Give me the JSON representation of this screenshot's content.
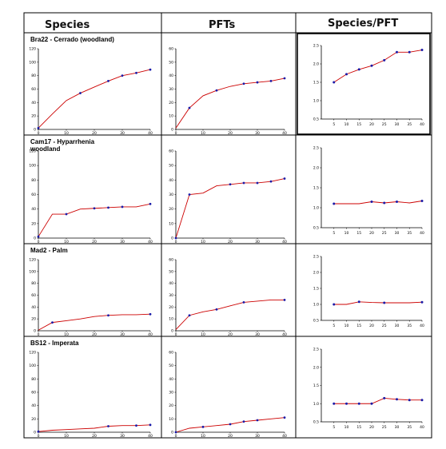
{
  "headers": [
    "Species",
    "PFTs",
    "Species/PFT"
  ],
  "rows": [
    {
      "title_lines": [
        "Bra22 - Cerrado (woodland)"
      ]
    },
    {
      "title_lines": [
        "Cam17 - Hyparrhenia",
        "woodland"
      ]
    },
    {
      "title_lines": [
        "Mad2 - Palm"
      ]
    },
    {
      "title_lines": [
        "BS12 - Imperata"
      ]
    }
  ],
  "colors": {
    "line": "#cc0000",
    "marker": "#1a1aa8",
    "axis": "#000000"
  },
  "chart_data": [
    {
      "type": "line",
      "panel": "Bra22 species",
      "x": [
        0,
        5,
        10,
        15,
        20,
        25,
        30,
        35,
        40
      ],
      "series": [
        {
          "values": [
            2,
            23,
            43,
            54,
            63,
            72,
            80,
            84,
            89
          ]
        }
      ],
      "xlim": [
        0,
        40
      ],
      "ylim": [
        0,
        120
      ],
      "yticks": [
        0,
        20,
        40,
        60,
        80,
        100,
        120
      ],
      "xticks": [
        0,
        10,
        20,
        30,
        40
      ],
      "markers": [
        0,
        15,
        25,
        30,
        35,
        40
      ]
    },
    {
      "type": "line",
      "panel": "Bra22 PFTs",
      "x": [
        0,
        5,
        10,
        15,
        20,
        25,
        30,
        35,
        40
      ],
      "series": [
        {
          "values": [
            1,
            16,
            25,
            29,
            32,
            34,
            35,
            36,
            38
          ]
        }
      ],
      "xlim": [
        0,
        40
      ],
      "ylim": [
        0,
        60
      ],
      "yticks": [
        0,
        10,
        20,
        30,
        40,
        50,
        60
      ],
      "xticks": [
        0,
        10,
        20,
        30,
        40
      ],
      "markers": [
        5,
        15,
        25,
        30,
        35,
        40
      ]
    },
    {
      "type": "line",
      "panel": "Bra22 ratio",
      "x": [
        5,
        10,
        15,
        20,
        25,
        30,
        35,
        40
      ],
      "series": [
        {
          "values": [
            1.5,
            1.72,
            1.85,
            1.95,
            2.1,
            2.32,
            2.32,
            2.38
          ]
        }
      ],
      "xlim": [
        0,
        40
      ],
      "ylim": [
        0.5,
        2.5
      ],
      "yticks": [
        0.5,
        1.0,
        1.5,
        2.0,
        2.5
      ],
      "xticks": [
        5,
        10,
        15,
        20,
        25,
        30,
        35,
        40
      ],
      "markers": [
        5,
        10,
        15,
        20,
        25,
        30,
        35,
        40
      ]
    },
    {
      "type": "line",
      "panel": "Cam17 species",
      "x": [
        0,
        5,
        10,
        15,
        20,
        25,
        30,
        35,
        40
      ],
      "series": [
        {
          "values": [
            2,
            33,
            33,
            40,
            41,
            42,
            43,
            43,
            47
          ]
        }
      ],
      "xlim": [
        0,
        40
      ],
      "ylim": [
        0,
        120
      ],
      "yticks": [
        0,
        20,
        40,
        60,
        80,
        100,
        120
      ],
      "xticks": [
        0,
        10,
        20,
        30,
        40
      ],
      "markers": [
        0,
        10,
        20,
        25,
        30,
        40
      ]
    },
    {
      "type": "line",
      "panel": "Cam17 PFTs",
      "x": [
        0,
        5,
        10,
        15,
        20,
        25,
        30,
        35,
        40
      ],
      "series": [
        {
          "values": [
            0,
            30,
            31,
            36,
            37,
            38,
            38,
            39,
            41
          ]
        }
      ],
      "xlim": [
        0,
        40
      ],
      "ylim": [
        0,
        60
      ],
      "yticks": [
        0,
        10,
        20,
        30,
        40,
        50,
        60
      ],
      "xticks": [
        0,
        10,
        20,
        30,
        40
      ],
      "markers": [
        0,
        5,
        20,
        25,
        30,
        35,
        40
      ]
    },
    {
      "type": "line",
      "panel": "Cam17 ratio",
      "x": [
        5,
        10,
        15,
        20,
        25,
        30,
        35,
        40
      ],
      "series": [
        {
          "values": [
            1.1,
            1.1,
            1.1,
            1.15,
            1.12,
            1.15,
            1.12,
            1.17
          ]
        }
      ],
      "xlim": [
        0,
        40
      ],
      "ylim": [
        0.5,
        2.5
      ],
      "yticks": [
        0.5,
        1.0,
        1.5,
        2.0,
        2.5
      ],
      "xticks": [
        5,
        10,
        15,
        20,
        25,
        30,
        35,
        40
      ],
      "markers": [
        5,
        20,
        25,
        30,
        40
      ]
    },
    {
      "type": "line",
      "panel": "Mad2 species",
      "x": [
        0,
        5,
        10,
        15,
        20,
        25,
        30,
        35,
        40
      ],
      "series": [
        {
          "values": [
            1,
            14,
            17,
            20,
            24,
            26,
            27,
            27,
            28
          ]
        }
      ],
      "xlim": [
        0,
        40
      ],
      "ylim": [
        0,
        120
      ],
      "yticks": [
        0,
        20,
        40,
        60,
        80,
        100,
        120
      ],
      "xticks": [
        0,
        10,
        20,
        30,
        40
      ],
      "markers": [
        5,
        25,
        40
      ]
    },
    {
      "type": "line",
      "panel": "Mad2 PFTs",
      "x": [
        0,
        5,
        10,
        15,
        20,
        25,
        30,
        35,
        40
      ],
      "series": [
        {
          "values": [
            1,
            13,
            16,
            18,
            21,
            24,
            25,
            26,
            26
          ]
        }
      ],
      "xlim": [
        0,
        40
      ],
      "ylim": [
        0,
        60
      ],
      "yticks": [
        0,
        10,
        20,
        30,
        40,
        50,
        60
      ],
      "xticks": [
        0,
        10,
        20,
        30,
        40
      ],
      "markers": [
        5,
        15,
        25,
        40
      ]
    },
    {
      "type": "line",
      "panel": "Mad2 ratio",
      "x": [
        5,
        10,
        15,
        20,
        25,
        30,
        35,
        40
      ],
      "series": [
        {
          "values": [
            1.0,
            1.0,
            1.08,
            1.06,
            1.05,
            1.05,
            1.05,
            1.07
          ]
        }
      ],
      "xlim": [
        0,
        40
      ],
      "ylim": [
        0.5,
        2.5
      ],
      "yticks": [
        0.5,
        1.0,
        1.5,
        2.0,
        2.5
      ],
      "xticks": [
        5,
        10,
        15,
        20,
        25,
        30,
        35,
        40
      ],
      "markers": [
        5,
        15,
        25,
        40
      ]
    },
    {
      "type": "line",
      "panel": "BS12 species",
      "x": [
        0,
        5,
        10,
        15,
        20,
        25,
        30,
        35,
        40
      ],
      "series": [
        {
          "values": [
            1,
            3,
            4,
            5,
            6,
            9,
            10,
            10,
            11
          ]
        }
      ],
      "xlim": [
        0,
        40
      ],
      "ylim": [
        0,
        120
      ],
      "yticks": [
        0,
        20,
        40,
        60,
        80,
        100,
        120
      ],
      "xticks": [
        0,
        10,
        20,
        30,
        40
      ],
      "markers": [
        0,
        25,
        35,
        40
      ]
    },
    {
      "type": "line",
      "panel": "BS12 PFTs",
      "x": [
        0,
        5,
        10,
        15,
        20,
        25,
        30,
        35,
        40
      ],
      "series": [
        {
          "values": [
            0,
            3,
            4,
            5,
            6,
            8,
            9,
            10,
            11
          ]
        }
      ],
      "xlim": [
        0,
        40
      ],
      "ylim": [
        0,
        60
      ],
      "yticks": [
        0,
        10,
        20,
        30,
        40,
        50,
        60
      ],
      "xticks": [
        0,
        10,
        20,
        30,
        40
      ],
      "markers": [
        0,
        10,
        20,
        25,
        30,
        40
      ]
    },
    {
      "type": "line",
      "panel": "BS12 ratio",
      "x": [
        5,
        10,
        15,
        20,
        25,
        30,
        35,
        40
      ],
      "series": [
        {
          "values": [
            1.0,
            1.0,
            1.0,
            1.0,
            1.15,
            1.12,
            1.1,
            1.1
          ]
        }
      ],
      "xlim": [
        0,
        40
      ],
      "ylim": [
        0.5,
        2.5
      ],
      "yticks": [
        0.5,
        1.0,
        1.5,
        2.0,
        2.5
      ],
      "xticks": [
        5,
        10,
        15,
        20,
        25,
        30,
        35,
        40
      ],
      "markers": [
        5,
        10,
        15,
        20,
        25,
        30,
        35,
        40
      ]
    }
  ]
}
